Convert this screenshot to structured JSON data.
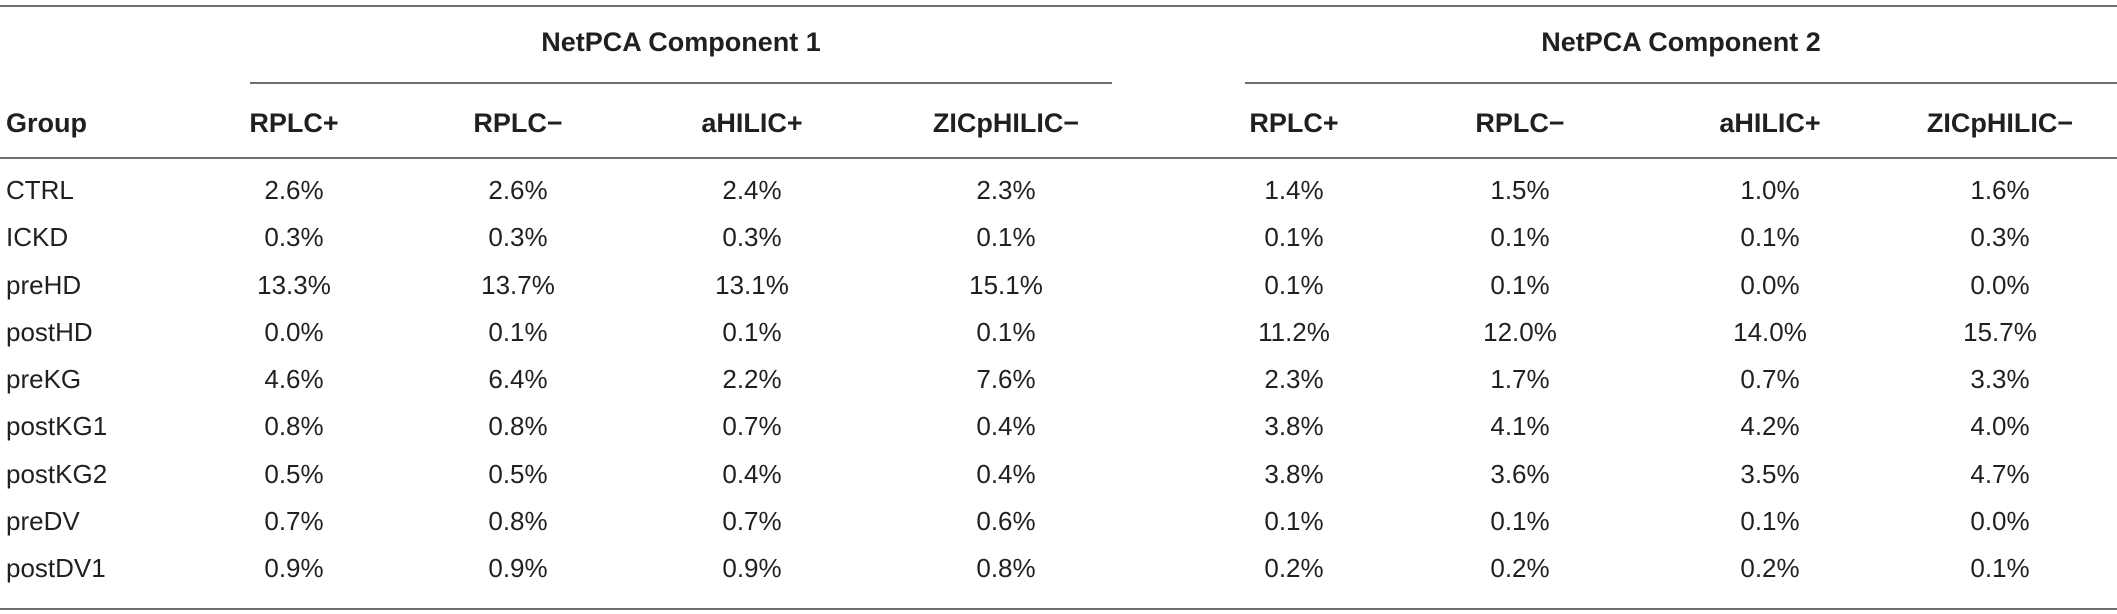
{
  "table": {
    "group_headers": [
      "NetPCA Component 1",
      "NetPCA Component 2"
    ],
    "first_column_header": "Group",
    "column_headers": [
      "RPLC+",
      "RPLC−",
      "aHILIC+",
      "ZICpHILIC−",
      "RPLC+",
      "RPLC−",
      "aHILIC+",
      "ZICpHILIC−"
    ],
    "rows": [
      {
        "group": "CTRL",
        "values": [
          "2.6%",
          "2.6%",
          "2.4%",
          "2.3%",
          "1.4%",
          "1.5%",
          "1.0%",
          "1.6%"
        ]
      },
      {
        "group": "ICKD",
        "values": [
          "0.3%",
          "0.3%",
          "0.3%",
          "0.1%",
          "0.1%",
          "0.1%",
          "0.1%",
          "0.3%"
        ]
      },
      {
        "group": "preHD",
        "values": [
          "13.3%",
          "13.7%",
          "13.1%",
          "15.1%",
          "0.1%",
          "0.1%",
          "0.0%",
          "0.0%"
        ]
      },
      {
        "group": "postHD",
        "values": [
          "0.0%",
          "0.1%",
          "0.1%",
          "0.1%",
          "11.2%",
          "12.0%",
          "14.0%",
          "15.7%"
        ]
      },
      {
        "group": "preKG",
        "values": [
          "4.6%",
          "6.4%",
          "2.2%",
          "7.6%",
          "2.3%",
          "1.7%",
          "0.7%",
          "3.3%"
        ]
      },
      {
        "group": "postKG1",
        "values": [
          "0.8%",
          "0.8%",
          "0.7%",
          "0.4%",
          "3.8%",
          "4.1%",
          "4.2%",
          "4.0%"
        ]
      },
      {
        "group": "postKG2",
        "values": [
          "0.5%",
          "0.5%",
          "0.4%",
          "0.4%",
          "3.8%",
          "3.6%",
          "3.5%",
          "4.7%"
        ]
      },
      {
        "group": "preDV",
        "values": [
          "0.7%",
          "0.8%",
          "0.7%",
          "0.6%",
          "0.1%",
          "0.1%",
          "0.1%",
          "0.0%"
        ]
      },
      {
        "group": "postDV1",
        "values": [
          "0.9%",
          "0.9%",
          "0.9%",
          "0.8%",
          "0.2%",
          "0.2%",
          "0.2%",
          "0.1%"
        ]
      }
    ]
  },
  "colors": {
    "text": "#231f20",
    "rule": "#6d6e71",
    "background": "#ffffff"
  }
}
